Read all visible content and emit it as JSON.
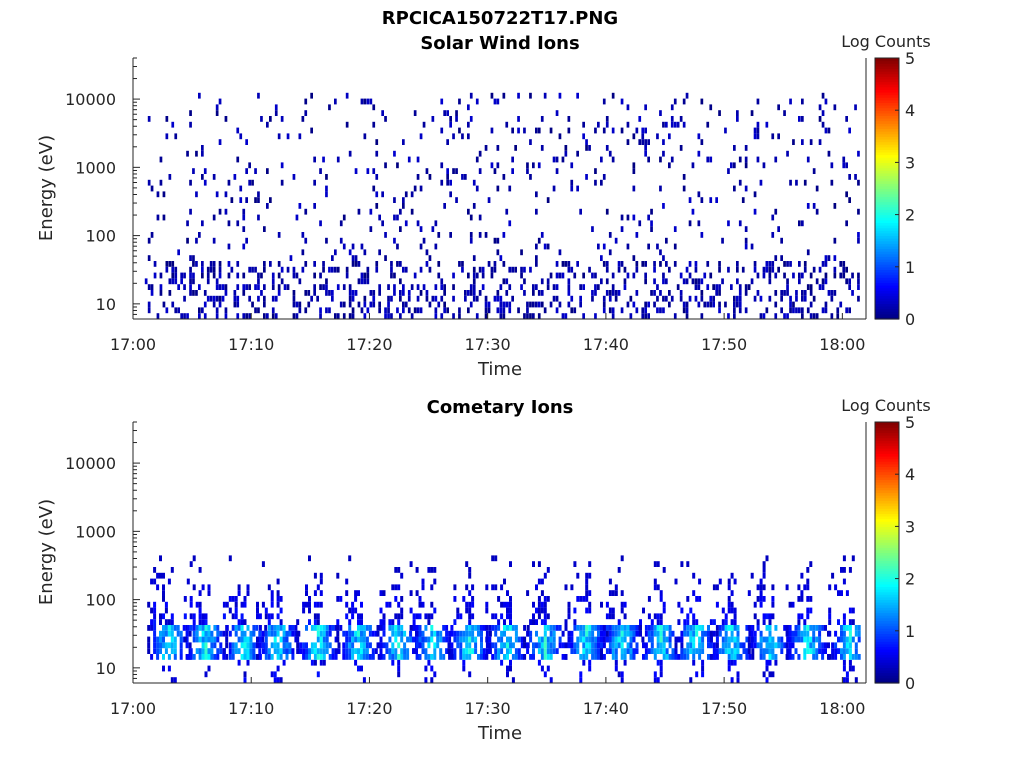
{
  "figure_title": "RPCICA150722T17.PNG",
  "colormap": [
    "#00007f",
    "#0000ff",
    "#007fff",
    "#00ffff",
    "#7fff7f",
    "#ffff00",
    "#ff7f00",
    "#ff0000",
    "#7f0000"
  ],
  "chart_data": [
    {
      "type": "heatmap",
      "title": "Solar Wind Ions",
      "xlabel": "Time",
      "ylabel": "Energy (eV)",
      "xticks": [
        "17:00",
        "17:10",
        "17:20",
        "17:30",
        "17:40",
        "17:50",
        "18:00"
      ],
      "xlim_minutes": [
        0,
        62
      ],
      "yticks": [
        "10",
        "100",
        "1000",
        "10000"
      ],
      "yscale": "log",
      "ylim": [
        6,
        40000
      ],
      "colorbar": {
        "label": "Log Counts",
        "ticks": [
          "0",
          "1",
          "2",
          "3",
          "4",
          "5"
        ],
        "range": [
          0,
          5
        ]
      },
      "description": "sparse single-count detections scattered over 10 eV to 12000 eV, denser below 40 eV",
      "value_range_log_counts": [
        0,
        0.5
      ]
    },
    {
      "type": "heatmap",
      "title": "Cometary Ions",
      "xlabel": "Time",
      "ylabel": "Energy (eV)",
      "xticks": [
        "17:00",
        "17:10",
        "17:20",
        "17:30",
        "17:40",
        "17:50",
        "18:00"
      ],
      "xlim_minutes": [
        0,
        62
      ],
      "yticks": [
        "10",
        "100",
        "1000",
        "10000"
      ],
      "yscale": "log",
      "ylim": [
        6,
        40000
      ],
      "colorbar": {
        "label": "Log Counts",
        "ticks": [
          "0",
          "1",
          "2",
          "3",
          "4",
          "5"
        ],
        "range": [
          0,
          5
        ]
      },
      "burst_center_minutes": [
        3.2,
        6.3,
        9.6,
        12.4,
        15.8,
        19.2,
        22.6,
        25.4,
        28.6,
        31.8,
        35.0,
        38.5,
        41.5,
        44.8,
        47.8,
        50.8,
        54.0,
        57.2,
        60.8
      ],
      "burst_core_energy_eV": [
        12,
        40
      ],
      "burst_peak_log_counts": 2.2,
      "burst_max_energy_eV": 450
    }
  ]
}
